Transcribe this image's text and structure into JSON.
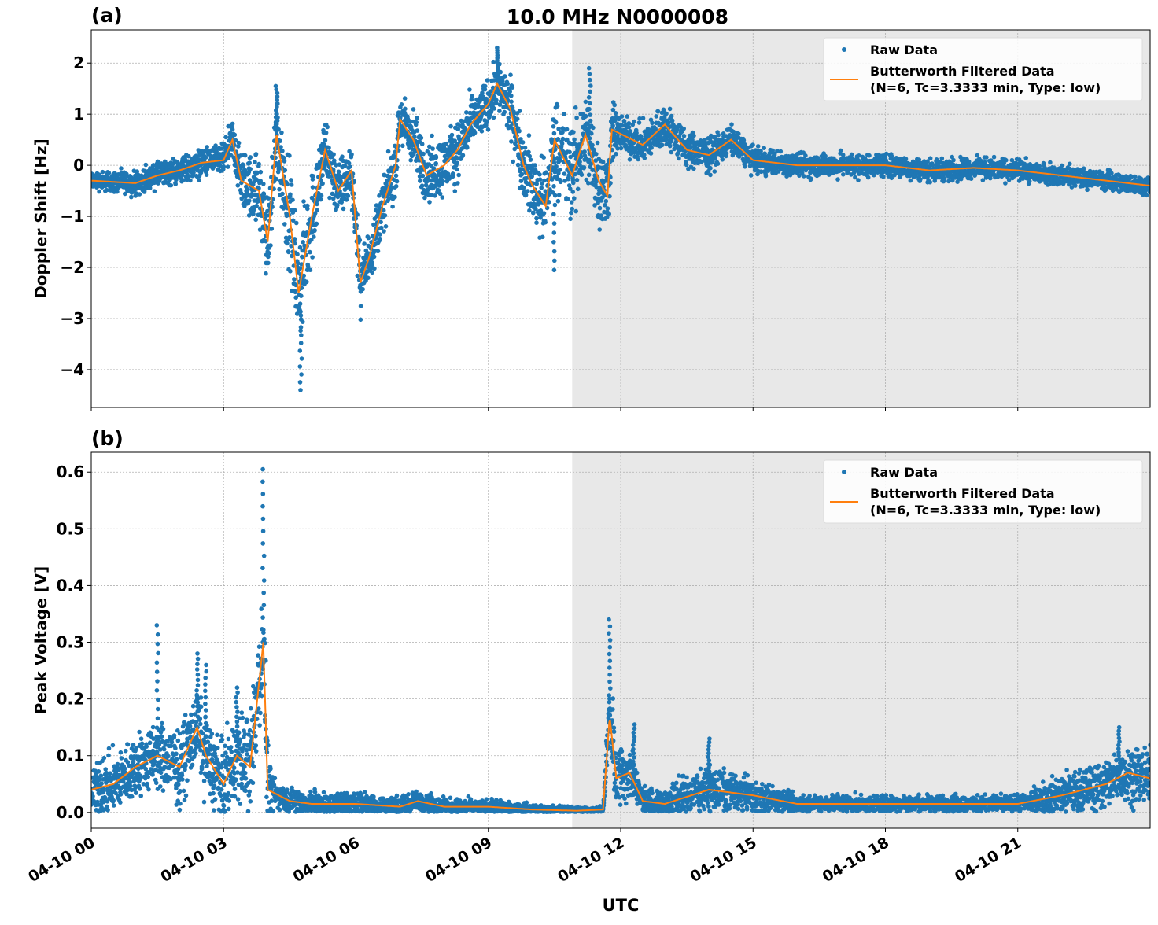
{
  "title": "10.0 MHz N0000008",
  "xlabel": "UTC",
  "x_tick_labels": [
    "04-10 00",
    "04-10 03",
    "04-10 06",
    "04-10 09",
    "04-10 12",
    "04-10 15",
    "04-10 18",
    "04-10 21"
  ],
  "x_ticks_hours": [
    0,
    3,
    6,
    9,
    12,
    15,
    18,
    21
  ],
  "xlim_hours": [
    0,
    24
  ],
  "shaded_region_hours": [
    10.9,
    24
  ],
  "colors": {
    "raw": "#1f77b4",
    "filtered": "#ff7f0e",
    "shade": "#e8e8e8",
    "grid": "#b0b0b0"
  },
  "legend": {
    "raw": "Raw Data",
    "filtered_line1": "Butterworth Filtered Data",
    "filtered_line2": "(N=6, Tc=3.3333 min, Type: low)",
    "placement": "top-right"
  },
  "chart_data": [
    {
      "type": "scatter+line",
      "panel_label": "(a)",
      "ylabel": "Doppler Shift [Hz]",
      "ylim": [
        -4.74,
        2.65
      ],
      "y_ticks": [
        2,
        1,
        0,
        -1,
        -2,
        -3,
        -4
      ],
      "y_tick_labels": [
        "2",
        "1",
        "0",
        "−1",
        "−2",
        "−3",
        "−4"
      ],
      "grid": true,
      "filtered": [
        [
          0,
          -0.3
        ],
        [
          1,
          -0.35
        ],
        [
          1.5,
          -0.2
        ],
        [
          2,
          -0.1
        ],
        [
          2.5,
          0.05
        ],
        [
          3,
          0.1
        ],
        [
          3.2,
          0.5
        ],
        [
          3.4,
          -0.3
        ],
        [
          3.8,
          -0.5
        ],
        [
          4.0,
          -1.5
        ],
        [
          4.2,
          0.6
        ],
        [
          4.5,
          -1.0
        ],
        [
          4.7,
          -2.5
        ],
        [
          5.0,
          -1.0
        ],
        [
          5.3,
          0.3
        ],
        [
          5.6,
          -0.5
        ],
        [
          5.9,
          -0.1
        ],
        [
          6.1,
          -2.3
        ],
        [
          6.3,
          -1.8
        ],
        [
          6.6,
          -0.8
        ],
        [
          6.9,
          0.0
        ],
        [
          7.0,
          0.9
        ],
        [
          7.3,
          0.5
        ],
        [
          7.6,
          -0.2
        ],
        [
          8.0,
          0.0
        ],
        [
          8.3,
          0.3
        ],
        [
          8.6,
          0.8
        ],
        [
          9.0,
          1.2
        ],
        [
          9.2,
          1.6
        ],
        [
          9.5,
          1.1
        ],
        [
          9.8,
          0.0
        ],
        [
          10.0,
          -0.4
        ],
        [
          10.3,
          -0.8
        ],
        [
          10.5,
          0.5
        ],
        [
          10.9,
          -0.2
        ],
        [
          11.2,
          0.6
        ],
        [
          11.5,
          -0.3
        ],
        [
          11.7,
          -0.6
        ],
        [
          11.8,
          0.7
        ],
        [
          12.5,
          0.4
        ],
        [
          13,
          0.8
        ],
        [
          13.5,
          0.3
        ],
        [
          14,
          0.2
        ],
        [
          14.5,
          0.5
        ],
        [
          15,
          0.1
        ],
        [
          16,
          0.0
        ],
        [
          17,
          0.0
        ],
        [
          18,
          0.0
        ],
        [
          19,
          -0.1
        ],
        [
          20,
          -0.05
        ],
        [
          21,
          -0.1
        ],
        [
          22,
          -0.2
        ],
        [
          23,
          -0.3
        ],
        [
          24,
          -0.4
        ]
      ],
      "raw_spread": [
        [
          0,
          0.15
        ],
        [
          3,
          0.25
        ],
        [
          3.5,
          0.5
        ],
        [
          4.7,
          0.9
        ],
        [
          5.5,
          0.5
        ],
        [
          6.5,
          0.45
        ],
        [
          8,
          0.5
        ],
        [
          9,
          0.4
        ],
        [
          10,
          0.6
        ],
        [
          11,
          0.8
        ],
        [
          11.7,
          0.7
        ],
        [
          12,
          0.3
        ],
        [
          13,
          0.35
        ],
        [
          15,
          0.2
        ],
        [
          24,
          0.15
        ]
      ],
      "raw_extremes": [
        [
          4.75,
          -4.4
        ],
        [
          4.2,
          1.55
        ],
        [
          9.2,
          2.3
        ],
        [
          11.3,
          1.9
        ],
        [
          10.5,
          -2.05
        ]
      ]
    },
    {
      "type": "scatter+line",
      "panel_label": "(b)",
      "ylabel": "Peak Voltage [V]",
      "ylim": [
        -0.028,
        0.635
      ],
      "y_ticks": [
        0.0,
        0.1,
        0.2,
        0.3,
        0.4,
        0.5,
        0.6
      ],
      "y_tick_labels": [
        "0.0",
        "0.1",
        "0.2",
        "0.3",
        "0.4",
        "0.5",
        "0.6"
      ],
      "grid": true,
      "filtered": [
        [
          0,
          0.04
        ],
        [
          0.5,
          0.05
        ],
        [
          1,
          0.08
        ],
        [
          1.5,
          0.1
        ],
        [
          2,
          0.08
        ],
        [
          2.4,
          0.15
        ],
        [
          2.6,
          0.1
        ],
        [
          3,
          0.05
        ],
        [
          3.3,
          0.1
        ],
        [
          3.6,
          0.08
        ],
        [
          3.9,
          0.3
        ],
        [
          4.0,
          0.04
        ],
        [
          4.5,
          0.02
        ],
        [
          5,
          0.015
        ],
        [
          6,
          0.015
        ],
        [
          7,
          0.01
        ],
        [
          7.4,
          0.02
        ],
        [
          8,
          0.01
        ],
        [
          9,
          0.01
        ],
        [
          10,
          0.005
        ],
        [
          11,
          0.003
        ],
        [
          11.6,
          0.005
        ],
        [
          11.75,
          0.17
        ],
        [
          11.9,
          0.06
        ],
        [
          12.2,
          0.07
        ],
        [
          12.5,
          0.02
        ],
        [
          13,
          0.015
        ],
        [
          14,
          0.04
        ],
        [
          15,
          0.03
        ],
        [
          16,
          0.015
        ],
        [
          18,
          0.015
        ],
        [
          20,
          0.015
        ],
        [
          21,
          0.015
        ],
        [
          22,
          0.03
        ],
        [
          23,
          0.05
        ],
        [
          23.5,
          0.07
        ],
        [
          24,
          0.06
        ]
      ],
      "raw_spread": [
        [
          0,
          0.04
        ],
        [
          3,
          0.06
        ],
        [
          3.9,
          0.08
        ],
        [
          4.2,
          0.02
        ],
        [
          10,
          0.008
        ],
        [
          11.6,
          0.005
        ],
        [
          11.8,
          0.06
        ],
        [
          12.5,
          0.02
        ],
        [
          14,
          0.035
        ],
        [
          15,
          0.025
        ],
        [
          16,
          0.012
        ],
        [
          21,
          0.012
        ],
        [
          22,
          0.03
        ],
        [
          24,
          0.045
        ]
      ],
      "raw_extremes": [
        [
          1.5,
          0.33
        ],
        [
          2.4,
          0.28
        ],
        [
          2.6,
          0.26
        ],
        [
          3.3,
          0.22
        ],
        [
          3.9,
          0.605
        ],
        [
          11.75,
          0.34
        ],
        [
          12.3,
          0.155
        ],
        [
          14.0,
          0.13
        ],
        [
          23.3,
          0.15
        ]
      ]
    }
  ]
}
